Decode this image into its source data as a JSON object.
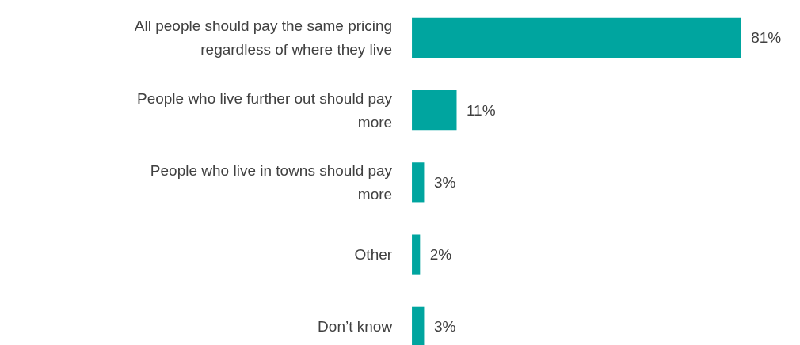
{
  "chart_data": {
    "type": "bar",
    "orientation": "horizontal",
    "categories": [
      "All people should pay the same pricing regardless of where they live",
      "People who live further out should pay more",
      "People who live in towns should pay more",
      "Other",
      "Don’t know"
    ],
    "values": [
      81,
      11,
      3,
      2,
      3
    ],
    "value_labels": [
      "81%",
      "11%",
      "3%",
      "2%",
      "3%"
    ],
    "color": "#00a59f"
  }
}
